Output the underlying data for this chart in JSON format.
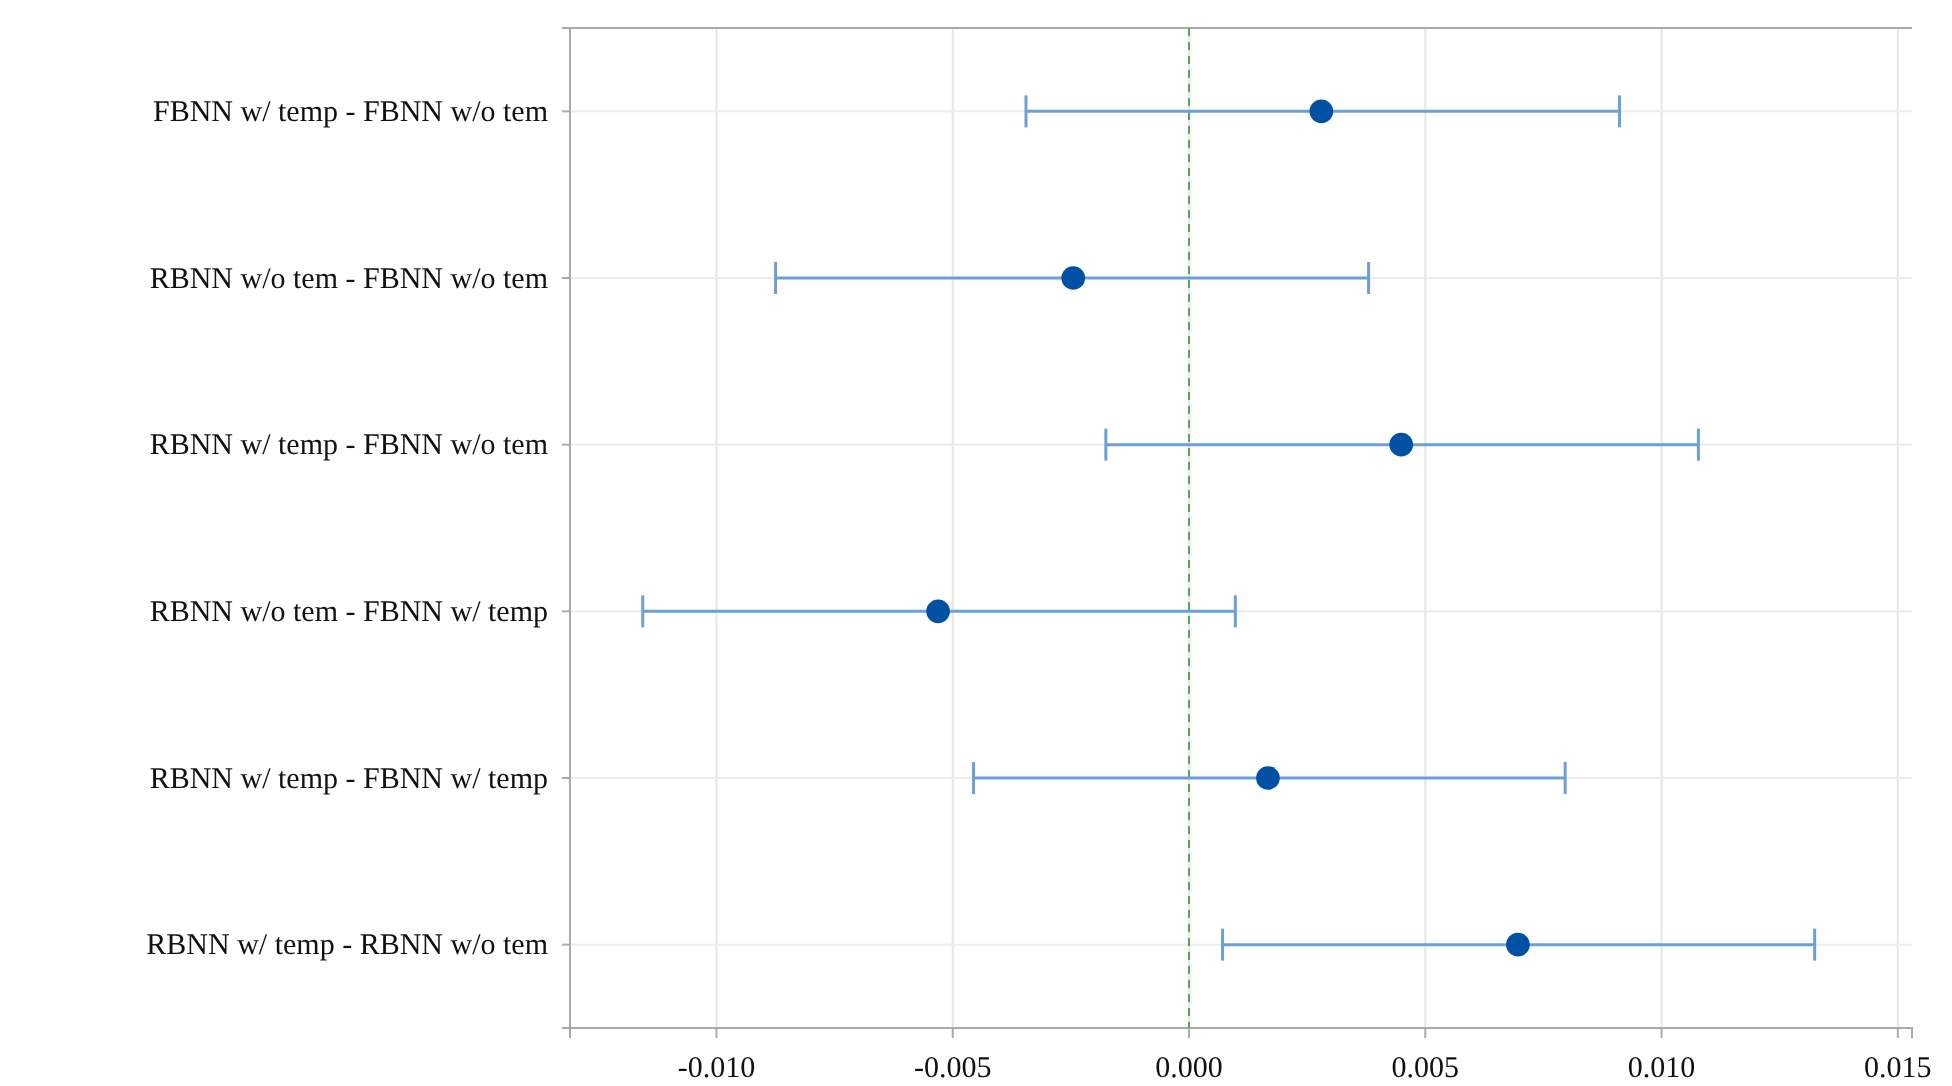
{
  "chart_data": {
    "type": "scatter",
    "orientation": "horizontal",
    "categories": [
      "FBNN w/ temp - FBNN w/o tem",
      "RBNN w/o tem - FBNN w/o tem",
      "RBNN w/ temp - FBNN w/o tem",
      "RBNN w/o tem - FBNN w/ temp",
      "RBNN w/ temp - FBNN w/ temp",
      "RBNN w/ temp - RBNN w/o tem"
    ],
    "values": [
      0.0028,
      -0.00245,
      0.00449,
      -0.00531,
      0.00167,
      0.00696
    ],
    "errors": [
      [
        -0.00345,
        0.00911
      ],
      [
        -0.00875,
        0.0038
      ],
      [
        -0.00176,
        0.01078
      ],
      [
        -0.01156,
        0.00098
      ],
      [
        -0.00456,
        0.00796
      ],
      [
        0.00071,
        0.01324
      ]
    ],
    "color": "#0050a4",
    "xlim": [
      -0.0131,
      0.0153
    ],
    "xticks": [
      {
        "value": -0.01,
        "label": "-0.010"
      },
      {
        "value": -0.005,
        "label": "-0.005"
      },
      {
        "value": 0,
        "label": "0.000"
      },
      {
        "value": 0.005,
        "label": "0.005"
      },
      {
        "value": 0.01,
        "label": "0.010"
      },
      {
        "value": 0.015,
        "label": "0.015"
      }
    ],
    "ref_lines": [
      {
        "axis": "x",
        "value": 0,
        "color": "#4cae4c",
        "line_style": "dashed"
      }
    ],
    "grid": true,
    "marker": "circle"
  }
}
